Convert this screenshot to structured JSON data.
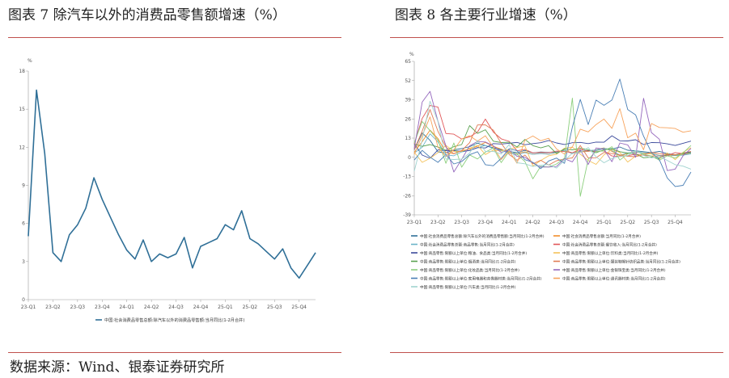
{
  "left": {
    "title": "图表 7 除汽车以外的消费品零售额增速（%）",
    "chart_data": {
      "type": "line",
      "ylabel": "%",
      "ylim": [
        0,
        18
      ],
      "yticks": [
        0,
        3,
        6,
        9,
        12,
        15,
        18
      ],
      "xtick_labels": [
        "23-Q1",
        "23-Q2",
        "23-Q3",
        "23-Q4",
        "24-Q1",
        "24-Q2",
        "24-Q3",
        "24-Q4",
        "25-Q1",
        "25-Q2",
        "25-Q3",
        "25-Q4"
      ],
      "series": [
        {
          "name": "中国:社会消费品零售总额:除汽车以外的消费品零售额:当月同比(1-2月合并)",
          "color": "#2f6f97",
          "values": [
            5.0,
            16.5,
            11.5,
            3.7,
            3.0,
            5.1,
            5.9,
            7.2,
            9.6,
            7.9,
            6.5,
            5.1,
            3.9,
            3.2,
            4.7,
            3.0,
            3.6,
            3.3,
            3.6,
            4.9,
            2.5,
            4.2,
            4.5,
            4.8,
            5.9,
            5.5,
            7.0,
            4.8,
            4.4,
            3.8,
            3.2,
            4.0,
            2.5,
            1.7,
            2.7,
            3.7
          ]
        }
      ]
    }
  },
  "right": {
    "title": "图表 8  各主要行业增速（%）",
    "chart_data": {
      "type": "line",
      "ylabel": "%",
      "ylim": [
        -39,
        65
      ],
      "yticks": [
        -39,
        -26,
        -13,
        0,
        13,
        26,
        39,
        52,
        65
      ],
      "xtick_labels": [
        "23-Q1",
        "23-Q2",
        "23-Q3",
        "23-Q4",
        "24-Q1",
        "24-Q2",
        "24-Q3",
        "24-Q4",
        "25-Q1",
        "25-Q2",
        "25-Q3",
        "25-Q4"
      ],
      "series": [
        {
          "name": "中国:社会消费品零售总额:除汽车以外的消费品零售额:当月同比(1-2月合并)",
          "color": "#2f6f97",
          "values": [
            5,
            16.5,
            11.5,
            3.7,
            3,
            5.1,
            5.9,
            7.2,
            9.6,
            7.9,
            6.5,
            5.1,
            3.9,
            3.2,
            4.7,
            3,
            3.6,
            3.3,
            3.6,
            4.9,
            2.5,
            4.2,
            4.5,
            4.8,
            5.9,
            5.5,
            7,
            4.8,
            4.4,
            3.8,
            3.2,
            4,
            2.5,
            1.7,
            2.7,
            3.7
          ]
        },
        {
          "name": "中国:社会消费品零售总额:当月同比(1-2月合并)",
          "color": "#f28e2b",
          "values": [
            3.5,
            10.6,
            18.4,
            12.7,
            3.1,
            2.5,
            4.6,
            5.5,
            7.6,
            10.1,
            7.4,
            5.5,
            3.1,
            2.3,
            3.7,
            2.0,
            2.7,
            2.1,
            3.2,
            4.8,
            3.0,
            3.7,
            4.0,
            5.1,
            6.4,
            4.0,
            1.0,
            2.6,
            3.4,
            3.0,
            2.9,
            1.3,
            1.5,
            1.8,
            2.0,
            3.0
          ]
        },
        {
          "name": "中国:社会消费品零售总额:商品零售:当月同比(1-2月合并)",
          "color": "#6cb4c8",
          "values": [
            2.9,
            6.8,
            15.9,
            10.5,
            1.7,
            1.0,
            3.7,
            4.6,
            6.5,
            8.0,
            5.9,
            4.6,
            2.8,
            2.0,
            3.2,
            2.0,
            2.6,
            2.1,
            3.4,
            4.7,
            2.7,
            4.2,
            4.3,
            5.0,
            6.1,
            4.5,
            1.5,
            3.0,
            3.6,
            3.1,
            2.6,
            1.2,
            1.3,
            1.1,
            1.5,
            2.2
          ]
        },
        {
          "name": "中国:社会消费品零售总额:餐饮收入:当月同比(1-2月合并)",
          "color": "#e15759",
          "values": [
            9.2,
            26.3,
            35.1,
            34.0,
            16.1,
            15.7,
            12.4,
            13.9,
            17.1,
            25.9,
            17.1,
            12.5,
            10.8,
            4.4,
            5.4,
            3.0,
            3.3,
            3.1,
            4.2,
            3.9,
            3.1,
            5.3,
            4.3,
            4.0,
            4.3,
            0.9,
            0.5,
            1.1,
            2.1,
            1.4,
            0.9,
            0.8,
            1.2,
            3.2,
            2.5,
            3.0
          ]
        },
        {
          "name": "中国:商品零售:限额以上单位:粮油、食品类:当月同比(1-2月合并)",
          "color": "#3b4a9b",
          "values": [
            9.0,
            1.5,
            -0.7,
            5.0,
            4.5,
            4.5,
            4.1,
            4.6,
            6.6,
            6.3,
            9.3,
            9.0,
            9.5,
            10.1,
            8.5,
            9.3,
            9.9,
            11.4,
            9.7,
            8.7,
            9.9,
            10.1,
            9.3,
            10.3,
            10.2,
            14.6,
            11.2,
            11.1,
            11.9,
            8.6,
            10.0,
            9.9,
            9.1,
            8.0,
            9.5,
            11.0
          ]
        },
        {
          "name": "中国:商品零售:限额以上单位:饮料类:当月同比(1-2月合并)",
          "color": "#f4c25a",
          "values": [
            3.4,
            -3.4,
            -0.7,
            3.1,
            8.1,
            3.9,
            4.0,
            6.1,
            8.1,
            1.9,
            4.9,
            4.2,
            5.5,
            6.7,
            7.7,
            -5.9,
            -2.2,
            1.0,
            2.1,
            6.2,
            6.9,
            2.1,
            -2.1,
            -4.8,
            1.7,
            5.2,
            3.3,
            -3.2,
            0.8,
            2.5,
            2.3,
            -1.2,
            3.0,
            -1.6,
            3.4,
            6.5
          ]
        },
        {
          "name": "中国:商品零售:限额以上单位:烟酒类:当月同比(1-2月合并)",
          "color": "#59a14f",
          "values": [
            9.0,
            7.4,
            8.6,
            6.9,
            4.8,
            7.2,
            8.6,
            21.5,
            16.2,
            18.7,
            10.9,
            10.0,
            10.2,
            7.0,
            12.1,
            7.9,
            6.4,
            7.9,
            2.5,
            5.8,
            5.0,
            6.2,
            5.1,
            3.1,
            5.1,
            5.9,
            3.8,
            2.9,
            2.4,
            -0.3,
            0.1,
            -0.4,
            2.0,
            1.4,
            2.5,
            3.0
          ]
        },
        {
          "name": "中国:商品零售:限额以上单位:服装鞋帽针纺织品类:当月同比(1-2月合并)",
          "color": "#e07b54",
          "values": [
            5.4,
            17.7,
            32.4,
            17.6,
            6.9,
            2.3,
            4.5,
            9.9,
            21.9,
            22.0,
            18.4,
            9.5,
            1.9,
            -2.0,
            1.5,
            -4.4,
            -2.0,
            -5.2,
            -2.3,
            -1.1,
            -0.4,
            8.0,
            -0.4,
            -0.3,
            3.3,
            2.5,
            1.6,
            0.7,
            0.4,
            1.8,
            3.5,
            2.5,
            2.0,
            1.5,
            3.0,
            4.0
          ]
        },
        {
          "name": "中国:商品零售:限额以上单位:化妆品类:当月同比(1-2月合并)",
          "color": "#8ccf7d",
          "values": [
            9.6,
            24.3,
            18.1,
            11.7,
            -4.1,
            9.7,
            -6.7,
            1.6,
            -1.1,
            3.5,
            6.3,
            -3.6,
            4.0,
            2.1,
            -2.9,
            -14.6,
            -6.1,
            -6.6,
            -4.5,
            -0.5,
            40.1,
            -26.4,
            -1.4,
            4.1,
            4.3,
            7.2,
            -1.9,
            2.3,
            4.4,
            2.0,
            0.9,
            -2.0,
            1.0,
            -0.5,
            3.0,
            8.0
          ]
        },
        {
          "name": "中国:商品零售:限额以上单位:金银珠宝类:当月同比(1-2月合并)",
          "color": "#9467bd",
          "values": [
            5.9,
            37.4,
            44.7,
            24.4,
            7.8,
            -10.0,
            -1.4,
            7.8,
            10.7,
            10.4,
            7.8,
            3.2,
            5.0,
            0.7,
            0.0,
            -3.7,
            -6.6,
            -6.6,
            -6.2,
            -1.0,
            -3.1,
            5.1,
            -4.9,
            6.3,
            5.5,
            -3.0,
            9.7,
            8.4,
            0.0,
            40.0,
            16.8,
            12.3,
            -9.0,
            -8.0,
            1.0,
            6.0
          ]
        },
        {
          "name": "中国:商品零售:限额以上单位:家用电器和音像器材类:当月同比(1-2月合并)",
          "color": "#4a7fb5",
          "values": [
            -1.9,
            4.7,
            0.1,
            -3.4,
            1.9,
            -4.5,
            -2.9,
            1.7,
            3.8,
            -5.0,
            -5.7,
            -0.7,
            5.8,
            4.5,
            -1.6,
            -3.4,
            -7.7,
            -2.5,
            -0.5,
            -4.1,
            20.5,
            39.2,
            22.2,
            38.8,
            35.2,
            38.8,
            53.0,
            32.4,
            28.7,
            14.3,
            3.3,
            -1.6,
            -14.0,
            -19.8,
            -19.0,
            -10.0
          ]
        },
        {
          "name": "中国:商品零售:限额以上单位:通讯器材类:当月同比(1-2月合并)",
          "color": "#f7a35c",
          "values": [
            2.0,
            14.6,
            27.4,
            6.9,
            0.5,
            5.1,
            12.4,
            14.6,
            11.0,
            14.6,
            6.9,
            -1.5,
            4.4,
            -4.0,
            11.6,
            14.4,
            11.2,
            12.9,
            5.6,
            2.2,
            7.0,
            19.1,
            17.2,
            22.2,
            25.9,
            19.6,
            33.0,
            13.2,
            16.4,
            5.1,
            22.9,
            20.2,
            20.0,
            19.5,
            17.0,
            18.0
          ]
        },
        {
          "name": "中国:商品零售:限额以上单位:汽车类:当月同比(1-2月合并)",
          "color": "#a0d3cf",
          "values": [
            -9.4,
            11.5,
            38.0,
            24.2,
            -1.1,
            -1.5,
            -1.2,
            2.8,
            11.4,
            4.0,
            4.0,
            2.2,
            8.7,
            -3.7,
            -4.4,
            -6.2,
            -5.4,
            -4.9,
            -7.3,
            -2.0,
            2.7,
            3.3,
            6.6,
            0.3,
            -3.7,
            -0.8,
            0.7,
            1.1,
            4.6,
            1.3,
            -0.4,
            0.8,
            -2.1,
            -5.0,
            -6.0,
            -8.0
          ]
        }
      ]
    }
  },
  "source": "数据来源：Wind、银泰证券研究所"
}
